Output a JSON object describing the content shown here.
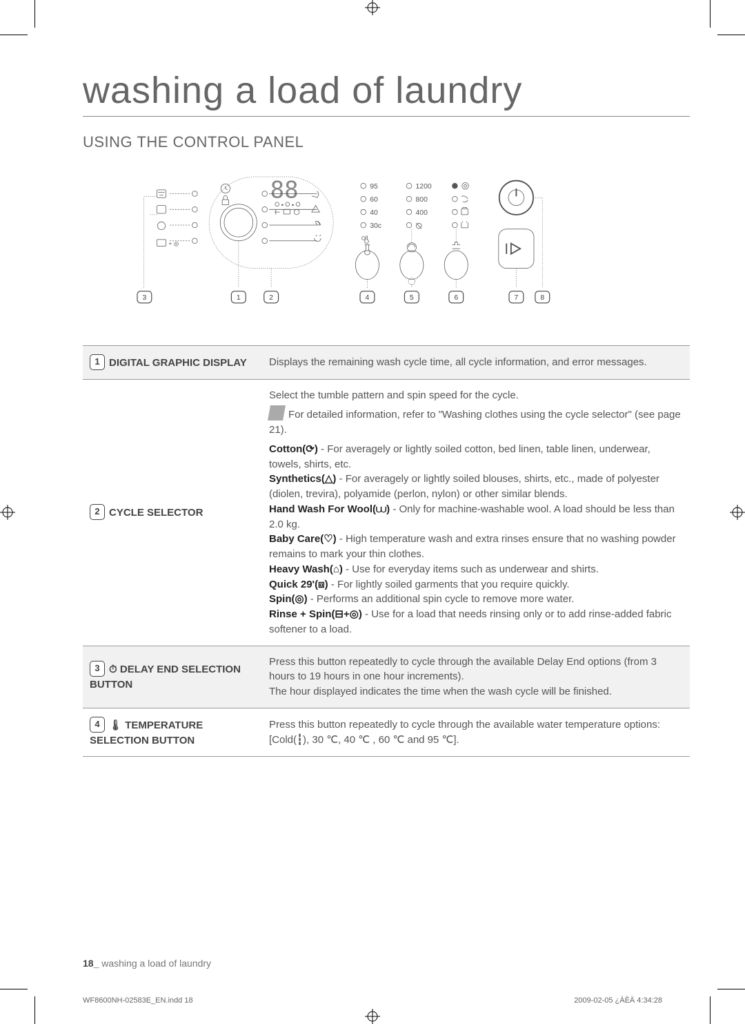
{
  "page_title": "washing a load of laundry",
  "section_title": "USING THE CONTROL PANEL",
  "callouts": [
    "1",
    "2",
    "3",
    "4",
    "5",
    "6",
    "7",
    "8"
  ],
  "panel": {
    "temp_labels": [
      "95",
      "60",
      "40",
      "30c"
    ],
    "spin_labels": [
      "1200",
      "800",
      "400"
    ]
  },
  "rows": [
    {
      "num": "1",
      "title": "DIGITAL GRAPHIC DISPLAY",
      "body": "Displays the remaining wash cycle time, all cycle information, and error messages."
    },
    {
      "num": "2",
      "title": "CYCLE SELECTOR",
      "body_intro": "Select the tumble pattern and spin speed for the cycle.",
      "note": "For detailed information, refer to \"Washing clothes using the cycle selector\" (see page 21).",
      "items": [
        {
          "name": "Cotton(⟳)",
          "text": " - For averagely or lightly soiled cotton, bed linen, table linen, underwear, towels, shirts, etc."
        },
        {
          "name": "Synthetics(△)",
          "text": " - For averagely or lightly soiled blouses, shirts, etc., made of polyester (diolen, trevira), polyamide (perlon, nylon) or other similar blends."
        },
        {
          "name": "Hand Wash For Wool(⩊)",
          "text": " - Only for machine-washable wool. A load should be less than 2.0 kg."
        },
        {
          "name": "Baby Care(♡)",
          "text": " - High temperature wash and extra rinses ensure that no washing powder remains to mark your thin clothes."
        },
        {
          "name": "Heavy Wash(⌂)",
          "text": " - Use for everyday items such as underwear and shirts."
        },
        {
          "name": "Quick 29'(⧈)",
          "text": " - For lightly soiled garments that you require quickly."
        },
        {
          "name": "Spin(◎)",
          "text": " - Performs an additional spin cycle to remove more water."
        },
        {
          "name": "Rinse + Spin(⊟+◎)",
          "text": " - Use for a load that needs rinsing only or to add rinse-added fabric softener to a load."
        }
      ]
    },
    {
      "num": "3",
      "title": "⏱ DELAY END SELECTION BUTTON",
      "body": "Press this button repeatedly to cycle through the available Delay End options (from 3 hours to 19 hours in one hour increments).\nThe hour displayed indicates the time when the wash cycle will be finished."
    },
    {
      "num": "4",
      "title": "🌡 TEMPERATURE SELECTION BUTTON",
      "body": "Press this button repeatedly to cycle through the available water temperature options:\n[Cold(┇), 30 ℃, 40 ℃ , 60 ℃ and 95 ℃]."
    }
  ],
  "footer_page": "18_",
  "footer_text": " washing a load of laundry",
  "print_left": "WF8600NH-02583E_EN.indd   18",
  "print_right": "2009-02-05   ¿ÀÈÄ 4:34:28"
}
